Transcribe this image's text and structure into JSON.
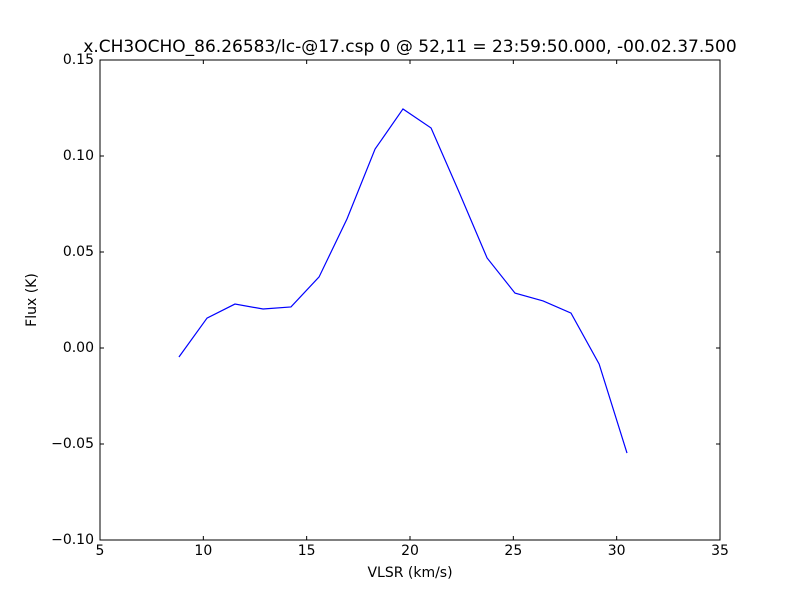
{
  "chart_data": {
    "type": "line",
    "title": "x.CH3OCHO_86.26583/lc-@17.csp 0 @ 52,11 = 23:59:50.000, -00.02.37.500",
    "x_label": "VLSR (km/s)",
    "y_label": "Flux (K)",
    "x": [
      8.82,
      10.18,
      11.53,
      12.89,
      14.24,
      15.6,
      16.95,
      18.31,
      19.66,
      21.02,
      22.37,
      23.73,
      25.08,
      26.44,
      27.79,
      29.15,
      30.5
    ],
    "series": [
      {
        "color": "#0000ff",
        "values": [
          -0.0047,
          0.0156,
          0.0229,
          0.0203,
          0.0214,
          0.037,
          0.0672,
          0.1036,
          0.1245,
          0.1146,
          0.0813,
          0.0469,
          0.0286,
          0.0245,
          0.0182,
          -0.0083,
          -0.0547
        ]
      }
    ],
    "xlim": [
      5,
      35
    ],
    "xticks": [
      5,
      10,
      15,
      20,
      25,
      30,
      35
    ],
    "ylim": [
      -0.1,
      0.15
    ],
    "yticks": [
      {
        "value": -0.1,
        "label": "−0.10"
      },
      {
        "value": -0.05,
        "label": "−0.05"
      },
      {
        "value": 0,
        "label": "0.00"
      },
      {
        "value": 0.05,
        "label": "0.05"
      },
      {
        "value": 0.1,
        "label": "0.10"
      },
      {
        "value": 0.15,
        "label": "0.15"
      }
    ],
    "grid": false
  }
}
